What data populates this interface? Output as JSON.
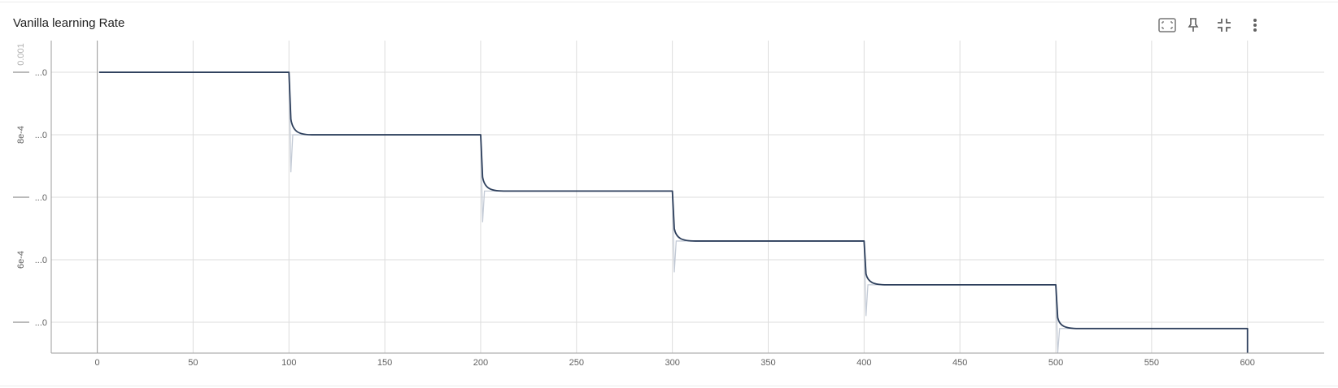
{
  "card": {
    "title": "Vanilla learning Rate"
  },
  "toolbar": {
    "items": [
      {
        "name": "fit-domain-icon",
        "label": ""
      },
      {
        "name": "pin-icon",
        "label": ""
      },
      {
        "name": "collapse-icon",
        "label": ""
      },
      {
        "name": "more-vert-icon",
        "label": ""
      }
    ]
  },
  "colors": {
    "main_line": "#2d3f5c",
    "raw_line": "#c4cbd6",
    "grid": "#dddddd",
    "axis": "#9e9e9e"
  },
  "chart_data": {
    "type": "line",
    "title": "Vanilla learning Rate",
    "xlabel": "",
    "ylabel": "",
    "x_ticks": [
      0,
      50,
      100,
      150,
      200,
      250,
      300,
      350,
      400,
      450,
      500,
      550,
      600
    ],
    "xlim": [
      -24,
      640
    ],
    "ylim": [
      0.0004507,
      0.0009507
    ],
    "y_grid": [
      0.0009,
      0.0008,
      0.0007,
      0.0006,
      0.0005
    ],
    "y_tick_labels": [
      {
        "value": 0.0009,
        "label": "...0",
        "side": ""
      },
      {
        "value": 0.0008,
        "label": "...0",
        "side": "8e-4"
      },
      {
        "value": 0.0007,
        "label": "...0",
        "side": ""
      },
      {
        "value": 0.0006,
        "label": "...0",
        "side": "6e-4"
      },
      {
        "value": 0.0005,
        "label": "...0",
        "side": ""
      }
    ],
    "y_top_label": "0.001",
    "grid": true,
    "series": [
      {
        "smoothed": true,
        "steps": [
          {
            "x_start": 1,
            "x_end": 100,
            "y": 0.0009
          },
          {
            "x_start": 100,
            "x_end": 200,
            "y": 0.0008
          },
          {
            "x_start": 200,
            "x_end": 300,
            "y": 0.00071
          },
          {
            "x_start": 300,
            "x_end": 400,
            "y": 0.00063
          },
          {
            "x_start": 400,
            "x_end": 500,
            "y": 0.00056
          },
          {
            "x_start": 500,
            "x_end": 600,
            "y": 0.00049
          }
        ],
        "end": {
          "x": 600,
          "y": 0.0004507
        }
      },
      {
        "smoothed": false,
        "spikes": [
          {
            "x": 101,
            "y": 0.00074
          },
          {
            "x": 201,
            "y": 0.00066
          },
          {
            "x": 301,
            "y": 0.00058
          },
          {
            "x": 401,
            "y": 0.00051
          },
          {
            "x": 501,
            "y": 0.0004507
          }
        ]
      }
    ]
  }
}
